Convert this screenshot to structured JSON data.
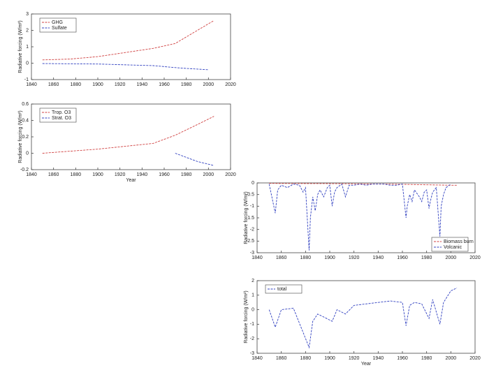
{
  "chart_data": [
    {
      "type": "line",
      "y_label": "Radiative forcing (W/m²)",
      "legend": "upper left",
      "xlim": [
        1840,
        2020
      ],
      "xticks": [
        1840,
        1860,
        1880,
        1900,
        1920,
        1940,
        1960,
        1980,
        2000,
        2020
      ],
      "ylim": [
        -1,
        3
      ],
      "yticks": [
        -1,
        0,
        1,
        2,
        3
      ],
      "series": [
        {
          "name": "GHG",
          "color": "#d04040",
          "x": [
            1850,
            1875,
            1900,
            1925,
            1950,
            1970,
            1990,
            2005
          ],
          "values": [
            0.2,
            0.25,
            0.4,
            0.65,
            0.9,
            1.2,
            2.0,
            2.6
          ]
        },
        {
          "name": "Sulfate",
          "color": "#3040c0",
          "x": [
            1850,
            1900,
            1950,
            1975,
            2000
          ],
          "values": [
            -0.02,
            -0.05,
            -0.15,
            -0.3,
            -0.4
          ]
        }
      ]
    },
    {
      "type": "line",
      "y_label": "Radiative forcing (W/m²)",
      "x_label": "Year",
      "legend": "upper left",
      "xlim": [
        1840,
        2020
      ],
      "xticks": [
        1840,
        1860,
        1880,
        1900,
        1920,
        1940,
        1960,
        1980,
        2000,
        2020
      ],
      "ylim": [
        -0.2,
        0.6
      ],
      "yticks": [
        -0.2,
        0,
        0.2,
        0.4,
        0.6
      ],
      "series": [
        {
          "name": "Trop. O3",
          "color": "#d04040",
          "x": [
            1850,
            1900,
            1950,
            1970,
            1990,
            2005
          ],
          "values": [
            0,
            0.05,
            0.12,
            0.22,
            0.35,
            0.45
          ]
        },
        {
          "name": "Strat. O3",
          "color": "#3040c0",
          "x": [
            1970,
            1990,
            2005
          ],
          "values": [
            0,
            -0.1,
            -0.15
          ]
        }
      ]
    },
    {
      "type": "line",
      "y_label": "Radiative forcing (W/m²)",
      "legend": "lower right",
      "xlim": [
        1840,
        2020
      ],
      "xticks": [
        1840,
        1860,
        1880,
        1900,
        1920,
        1940,
        1960,
        1980,
        2000,
        2020
      ],
      "ylim": [
        -3,
        0
      ],
      "yticks": [
        -3,
        -2.5,
        -2,
        -1.5,
        -1,
        -0.5,
        0
      ],
      "series": [
        {
          "name": "Biomass burn",
          "color": "#d04040",
          "x": [
            1850,
            1900,
            1950,
            2000,
            2005
          ],
          "values": [
            -0.02,
            -0.03,
            -0.05,
            -0.1,
            -0.1
          ]
        },
        {
          "name": "Volcanic",
          "color": "#3040c0",
          "x": [
            1850,
            1855,
            1857,
            1860,
            1865,
            1870,
            1875,
            1878,
            1880,
            1883,
            1884,
            1886,
            1888,
            1890,
            1892,
            1895,
            1898,
            1900,
            1902,
            1904,
            1906,
            1910,
            1913,
            1916,
            1920,
            1925,
            1930,
            1935,
            1940,
            1945,
            1950,
            1955,
            1960,
            1963,
            1964,
            1966,
            1968,
            1970,
            1974,
            1976,
            1978,
            1980,
            1982,
            1983,
            1985,
            1988,
            1991,
            1992,
            1994,
            1996,
            2000
          ],
          "values": [
            -0.05,
            -1.3,
            -0.3,
            -0.1,
            -0.2,
            -0.05,
            -0.1,
            -0.4,
            -0.2,
            -2.9,
            -1.5,
            -0.6,
            -1.2,
            -0.5,
            -0.3,
            -0.6,
            -0.2,
            -0.1,
            -1.0,
            -0.4,
            -0.2,
            -0.05,
            -0.6,
            -0.1,
            -0.1,
            -0.05,
            -0.1,
            -0.05,
            -0.05,
            -0.05,
            -0.1,
            -0.1,
            -0.05,
            -1.5,
            -1.0,
            -0.5,
            -0.8,
            -0.3,
            -0.6,
            -0.8,
            -0.4,
            -0.3,
            -1.1,
            -0.8,
            -0.4,
            -0.2,
            -2.3,
            -1.0,
            -0.5,
            -0.2,
            -0.05
          ]
        }
      ]
    },
    {
      "type": "line",
      "y_label": "Radiative forcing (W/m²)",
      "x_label": "Year",
      "legend": "upper left",
      "xlim": [
        1840,
        2020
      ],
      "xticks": [
        1840,
        1860,
        1880,
        1900,
        1920,
        1940,
        1960,
        1980,
        2000,
        2020
      ],
      "ylim": [
        -3,
        2
      ],
      "yticks": [
        -3,
        -2,
        -1,
        0,
        1,
        2
      ],
      "series": [
        {
          "name": "total",
          "color": "#3040c0",
          "x": [
            1850,
            1855,
            1860,
            1870,
            1883,
            1886,
            1890,
            1895,
            1902,
            1906,
            1913,
            1920,
            1930,
            1940,
            1950,
            1960,
            1963,
            1966,
            1970,
            1976,
            1982,
            1985,
            1991,
            1994,
            2000,
            2005
          ],
          "values": [
            0,
            -1.2,
            0,
            0.1,
            -2.6,
            -0.8,
            -0.3,
            -0.5,
            -0.8,
            0,
            -0.3,
            0.3,
            0.4,
            0.5,
            0.6,
            0.5,
            -1.1,
            0.3,
            0.5,
            0.4,
            -0.6,
            0.7,
            -1.0,
            0.5,
            1.3,
            1.5
          ]
        }
      ]
    }
  ]
}
